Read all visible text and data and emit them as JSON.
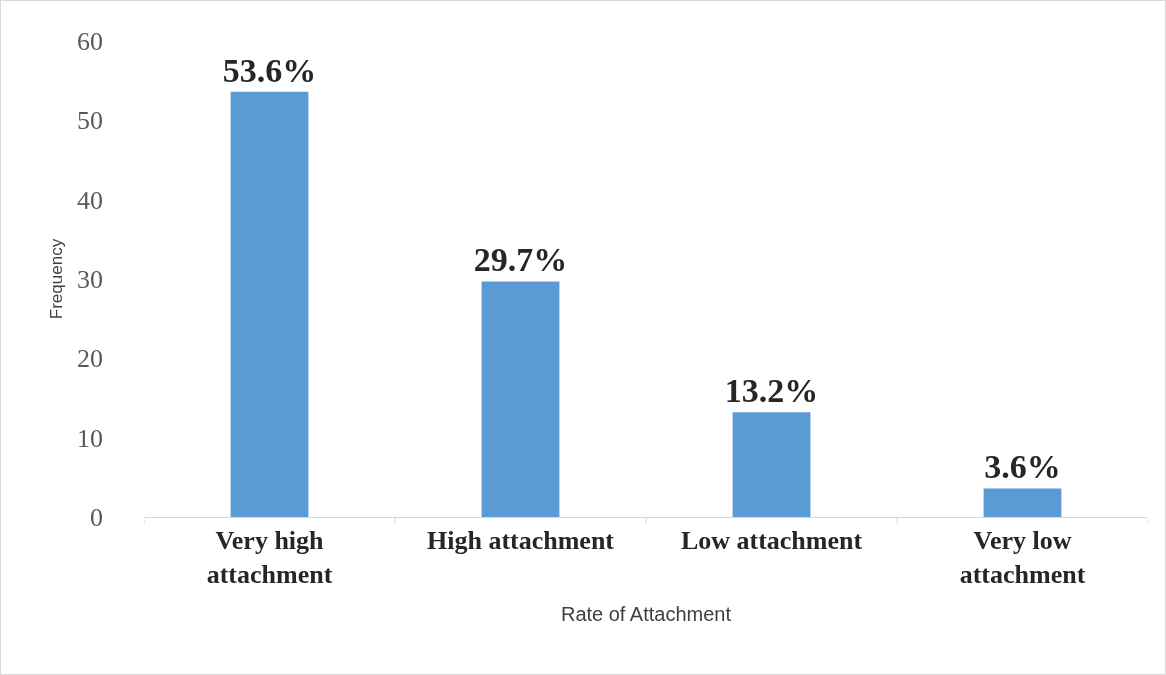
{
  "chart_data": {
    "type": "bar",
    "xlabel": "Rate of Attachment",
    "ylabel": "Frequency",
    "categories": [
      "Very high attachment",
      "High attachment",
      "Low attachment",
      "Very low attachment"
    ],
    "values": [
      53.6,
      29.7,
      13.2,
      3.6
    ],
    "value_labels": [
      "53.6%",
      "29.7%",
      "13.2%",
      "3.6%"
    ],
    "color": "#5b9bd5",
    "ylim": [
      0,
      60
    ],
    "yticks": [
      0,
      10,
      20,
      30,
      40,
      50,
      60
    ],
    "grid": false
  }
}
